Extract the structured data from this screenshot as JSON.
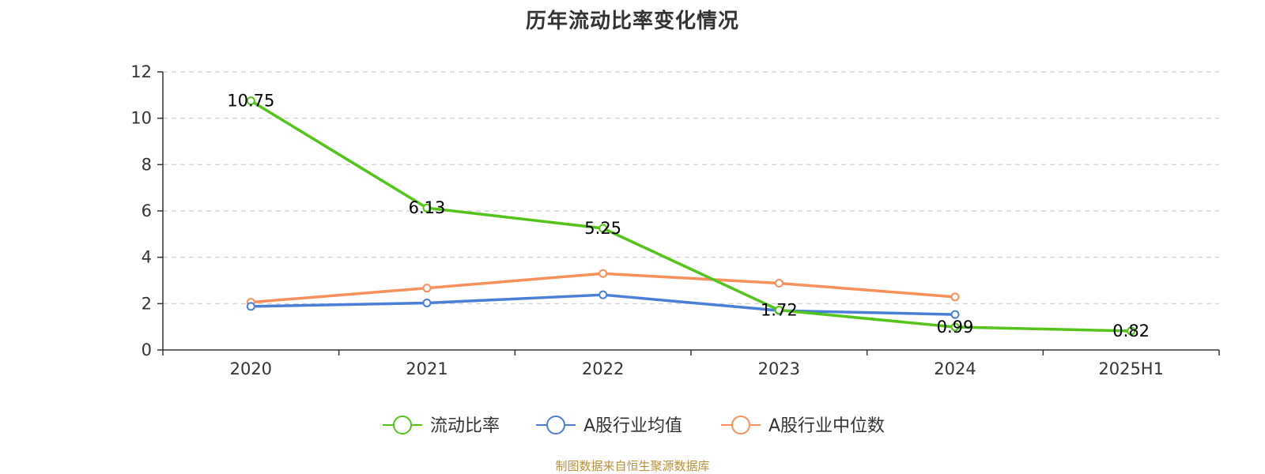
{
  "source_note": "制图数据来自恒生聚源数据库",
  "chart_data": {
    "type": "line",
    "title": "历年流动比率变化情况",
    "categories": [
      "2020",
      "2021",
      "2022",
      "2023",
      "2024",
      "2025H1"
    ],
    "ylim": [
      0,
      12
    ],
    "yticks": [
      0,
      2,
      4,
      6,
      8,
      10,
      12
    ],
    "grid": true,
    "legend_position": "bottom",
    "series": [
      {
        "name": "流动比率",
        "color": "#52c41a",
        "labels": true,
        "values": [
          10.75,
          6.13,
          5.25,
          1.72,
          0.99,
          0.82
        ],
        "value_labels": [
          "10.75",
          "6.13",
          "5.25",
          "1.72",
          "0.99",
          "0.82"
        ]
      },
      {
        "name": "A股行业均值",
        "color": "#4a7fd8",
        "labels": false,
        "values": [
          1.88,
          2.03,
          2.38,
          1.7,
          1.53,
          null
        ]
      },
      {
        "name": "A股行业中位数",
        "color": "#f98f5b",
        "labels": false,
        "values": [
          2.06,
          2.67,
          3.3,
          2.88,
          2.29,
          null
        ]
      }
    ]
  }
}
